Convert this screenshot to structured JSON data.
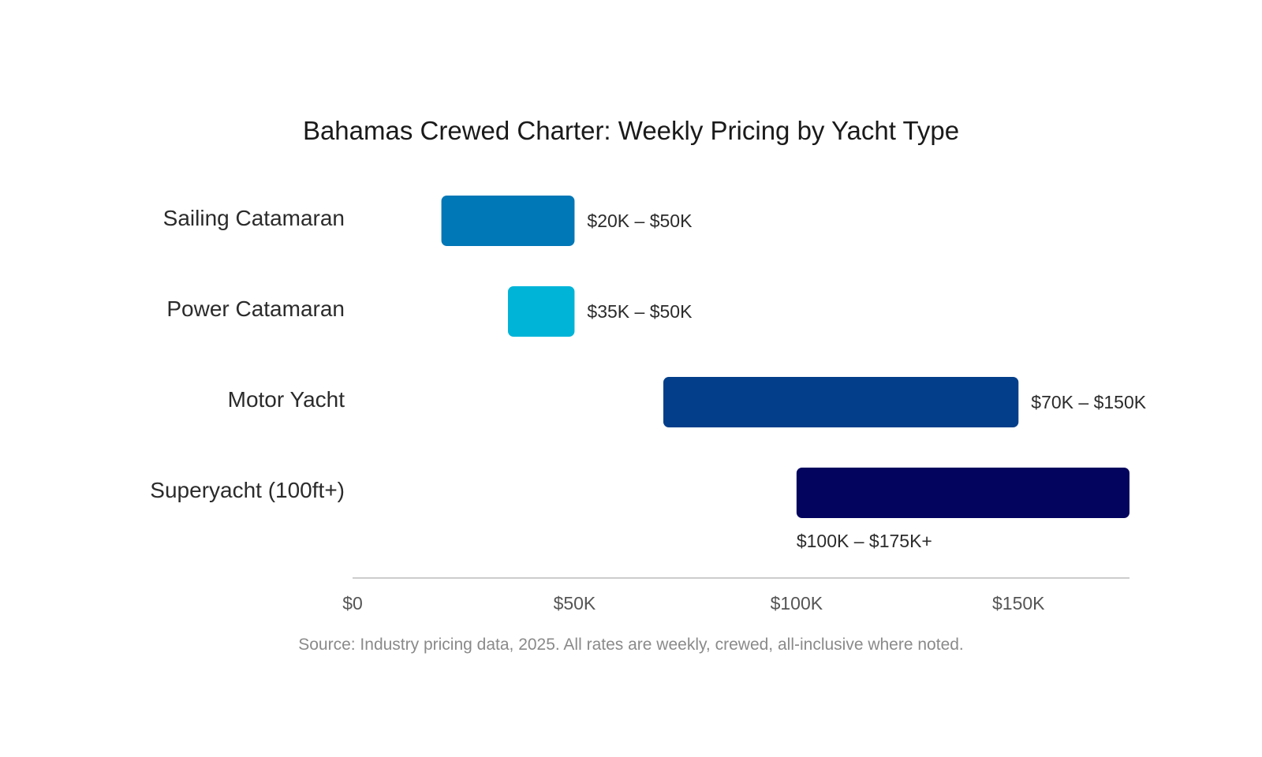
{
  "chart_data": {
    "type": "bar",
    "orientation": "horizontal-range",
    "title": "Bahamas Crewed Charter: Weekly Pricing by Yacht Type",
    "xlabel": "",
    "ylabel": "",
    "xlim": [
      0,
      175
    ],
    "x_unit": "thousand USD per week",
    "grid": false,
    "legend": "none",
    "x_ticks": [
      {
        "value": 0,
        "label": "$0"
      },
      {
        "value": 50,
        "label": "$50K"
      },
      {
        "value": 100,
        "label": "$100K"
      },
      {
        "value": 150,
        "label": "$150K"
      }
    ],
    "categories": [
      "Sailing Catamaran",
      "Power Catamaran",
      "Motor Yacht",
      "Superyacht (100ft+)"
    ],
    "bars": [
      {
        "category": "Sailing Catamaran",
        "low": 20,
        "high": 50,
        "label": "$20K – $50K",
        "color": "#0077b6"
      },
      {
        "category": "Power Catamaran",
        "low": 35,
        "high": 50,
        "label": "$35K – $50K",
        "color": "#00b4d8"
      },
      {
        "category": "Motor Yacht",
        "low": 70,
        "high": 150,
        "label": "$70K – $150K",
        "color": "#023e8a"
      },
      {
        "category": "Superyacht (100ft+)",
        "low": 100,
        "high": 175,
        "label": "$100K – $175K+",
        "color": "#03045e"
      }
    ],
    "source": "Source: Industry pricing data, 2025. All rates are weekly, crewed, all-inclusive where noted."
  }
}
